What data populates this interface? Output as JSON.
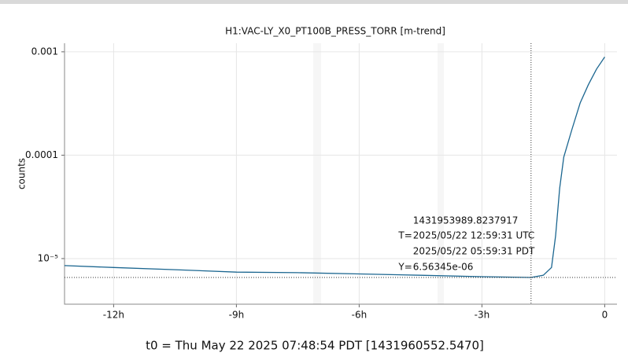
{
  "chart_data": {
    "type": "line",
    "title": "H1:VAC-LY_X0_PT100B_PRESS_TORR [m-trend]",
    "ylabel": "counts",
    "footer": "t0 = Thu May 22 2025 07:48:54 PDT [1431960552.5470]",
    "log_y": true,
    "grid": true,
    "xlim": [
      -13.2,
      0.3
    ],
    "ylim": [
      3.62e-06,
      0.00121
    ],
    "xticks": [
      {
        "value": -12,
        "label": "-12h"
      },
      {
        "value": -9,
        "label": "-9h"
      },
      {
        "value": -6,
        "label": "-6h"
      },
      {
        "value": -3,
        "label": "-3h"
      },
      0
    ],
    "yticks": [
      {
        "value": 1e-05,
        "label": "10⁻⁵"
      },
      0.0001,
      0.001
    ],
    "series": [
      {
        "color": "#1b6690",
        "x": [
          -13.2,
          -12,
          -10.5,
          -9,
          -7.5,
          -6,
          -4.5,
          -3,
          -1.8,
          -1.5,
          -1.3,
          -1.2,
          -1.1,
          -1.0,
          -0.8,
          -0.6,
          -0.4,
          -0.2,
          0
        ],
        "values": [
          8.55e-06,
          8.2e-06,
          7.8e-06,
          7.4e-06,
          7.3e-06,
          7.1e-06,
          6.9e-06,
          6.68e-06,
          6.56e-06,
          6.9e-06,
          8.2e-06,
          1.66e-05,
          4.8e-05,
          9.6e-05,
          0.000178,
          0.00032,
          0.00048,
          0.00068,
          0.00089
        ]
      }
    ],
    "cursor": {
      "x": -1.8,
      "y": {
        "value": 6.56345e-06,
        "label": "6.56345e-06"
      },
      "gps": "1431953989.8237917",
      "t_prefix": "T=",
      "utc": "2025/05/22 12:59:31 UTC",
      "pdt": "2025/05/22 05:59:31 PDT",
      "y_prefix": "Y="
    }
  }
}
